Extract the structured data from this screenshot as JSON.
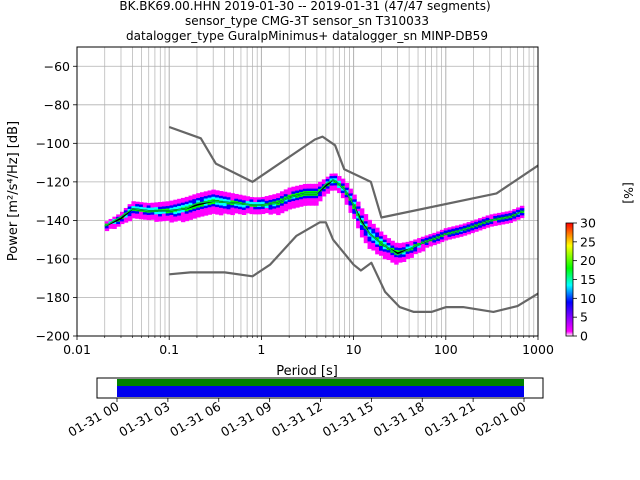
{
  "chart_data": {
    "type": "heatmap",
    "title_lines": [
      "BK.BK69.00.HHN   2019-01-30 -- 2019-01-31  (47/47 segments)",
      "sensor_type CMG-3T sensor_sn T310033",
      "datalogger_type GuralpMinimus+ datalogger_sn MINP-DB59"
    ],
    "xlabel": "Period [s]",
    "ylabel": "Power [m²/s⁴/Hz] [dB]",
    "xscale": "log",
    "xlim": [
      0.01,
      1000
    ],
    "ylim": [
      -200,
      -50
    ],
    "x_tick_labels": [
      "0.01",
      "0.1",
      "1",
      "10",
      "100",
      "1000"
    ],
    "y_ticks": [
      -200,
      -180,
      -160,
      -140,
      -120,
      -100,
      -80,
      -60
    ],
    "grid": true,
    "colorbar": {
      "label": "[%]",
      "min": 0,
      "max": 30,
      "ticks": [
        0,
        5,
        10,
        15,
        20,
        25,
        30
      ],
      "colors": [
        "#ffffff",
        "#ff00ff",
        "#0000ff",
        "#00ffff",
        "#00ff00",
        "#ffff00",
        "#ff0000"
      ]
    },
    "series": [
      {
        "role": "nhnm",
        "color": "#666666",
        "x": [
          0.1,
          0.17,
          0.4,
          0.8,
          1.24,
          2.4,
          4.3,
          5.0,
          6.0,
          10.0,
          12.0,
          15.6,
          21.9,
          31.6,
          45.0,
          70.0,
          101.0,
          154.0,
          328.0,
          600.0,
          1000.0
        ],
        "y": [
          -168,
          -167,
          -167,
          -169,
          -163,
          -148,
          -141,
          -141,
          -150,
          -163,
          -166,
          -162,
          -177,
          -185,
          -187.5,
          -187.5,
          -185,
          -185,
          -187.5,
          -184.5,
          -178
        ]
      },
      {
        "role": "nlnm",
        "color": "#666666",
        "x": [
          0.1,
          0.22,
          0.32,
          0.8,
          3.8,
          4.6,
          6.3,
          7.9,
          15.4,
          20.0,
          354.8,
          1000.0
        ],
        "y": [
          -91.5,
          -97.4,
          -110.5,
          -120,
          -98,
          -96.5,
          -101,
          -113.4,
          -120,
          -138.5,
          -126,
          -111.5
        ]
      },
      {
        "role": "mean",
        "color": "#000000",
        "x": [
          0.02,
          0.03,
          0.04,
          0.06,
          0.1,
          0.15,
          0.2,
          0.3,
          0.5,
          0.8,
          1.0,
          1.5,
          2.0,
          3.0,
          4.0,
          5.0,
          6.0,
          6.5,
          8.0,
          10.0,
          12.0,
          15.0,
          20.0,
          25.0,
          30.0,
          40.0,
          60.0,
          80.0,
          100.0,
          150.0,
          200.0,
          300.0,
          500.0,
          700.0
        ],
        "y": [
          -143,
          -139,
          -134,
          -135,
          -135,
          -134,
          -132,
          -130,
          -131,
          -132,
          -132,
          -131,
          -128,
          -126,
          -126,
          -122,
          -119,
          -120,
          -124,
          -132,
          -140,
          -147,
          -152,
          -155,
          -157,
          -155,
          -151,
          -149,
          -147,
          -145,
          -143,
          -140,
          -138,
          -135
        ]
      },
      {
        "role": "mode",
        "color": "#00cc44",
        "x": [
          0.02,
          0.03,
          0.04,
          0.06,
          0.1,
          0.15,
          0.2,
          0.3,
          0.5,
          0.8,
          1.0,
          1.5,
          2.0,
          3.0,
          4.0,
          5.0,
          6.0,
          6.5,
          8.0,
          10.0,
          12.0,
          15.0,
          20.0,
          25.0,
          30.0,
          40.0,
          60.0,
          80.0,
          100.0,
          150.0,
          200.0,
          300.0,
          500.0,
          700.0
        ],
        "y": [
          -143,
          -138,
          -134,
          -135,
          -135,
          -134,
          -131,
          -130,
          -131,
          -132,
          -132,
          -131,
          -128,
          -126,
          -126,
          -121,
          -119,
          -120,
          -124,
          -132,
          -141,
          -147,
          -152,
          -155,
          -158,
          -155,
          -151,
          -149,
          -147,
          -145,
          -143,
          -140,
          -138,
          -135
        ]
      }
    ],
    "density_band": {
      "x": [
        0.02,
        0.03,
        0.04,
        0.06,
        0.1,
        0.15,
        0.2,
        0.3,
        0.5,
        0.8,
        1.0,
        1.5,
        2.0,
        3.0,
        4.0,
        5.0,
        6.0,
        6.5,
        8.0,
        10.0,
        12.0,
        15.0,
        20.0,
        25.0,
        30.0,
        40.0,
        60.0,
        80.0,
        100.0,
        150.0,
        200.0,
        300.0,
        500.0,
        700.0
      ],
      "center": [
        -143,
        -139,
        -134,
        -135,
        -135,
        -134,
        -132,
        -130,
        -131,
        -132,
        -132,
        -131,
        -128,
        -126,
        -126,
        -122,
        -119,
        -120,
        -124,
        -132,
        -140,
        -147,
        -152,
        -155,
        -157,
        -155,
        -151,
        -149,
        -147,
        -145,
        -143,
        -140,
        -138,
        -135
      ],
      "halfwidth": [
        2,
        3,
        4,
        4,
        5,
        6,
        6,
        6,
        5,
        4,
        4,
        5,
        5,
        5,
        5,
        4,
        4,
        4,
        5,
        6,
        7,
        7,
        6,
        5,
        5,
        4,
        3,
        3,
        3,
        3,
        3,
        3,
        3,
        3
      ]
    },
    "coverage": {
      "time_tick_labels": [
        "01-31 00",
        "01-31 03",
        "01-31 06",
        "01-31 09",
        "01-31 12",
        "01-31 15",
        "01-31 18",
        "01-31 21",
        "02-01 00"
      ],
      "data_color": "#0000ee",
      "used_color": "#008000"
    }
  }
}
